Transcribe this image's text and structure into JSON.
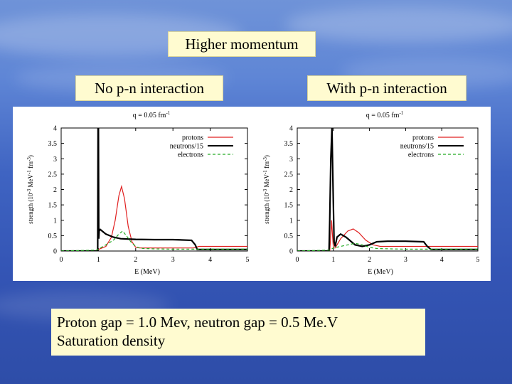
{
  "slide": {
    "title": "Higher  momentum",
    "left_label": "No  p-n  interaction",
    "right_label": "With  p-n  interaction",
    "note_line1": "Proton gap  =  1.0  Mev,  neutron gap = 0.5 Me.V",
    "note_line2": "Saturation density"
  },
  "chart_data": [
    {
      "type": "line",
      "title": "q = 0.05 fm-1",
      "title_base": "q = 0.05 fm",
      "title_sup": "-1",
      "xlabel": "E (MeV)",
      "ylabel": "strength (10-3 MeV-1 fm-3)",
      "ylabel_parts": [
        "strength (10",
        "-3",
        " MeV",
        "-1",
        " fm",
        "-3",
        ")"
      ],
      "xlim": [
        0,
        5
      ],
      "ylim": [
        0,
        4
      ],
      "xticks": [
        "0",
        "1",
        "2",
        "3",
        "4",
        "5"
      ],
      "yticks": [
        "0",
        "0.5",
        "1",
        "1.5",
        "2",
        "2.5",
        "3",
        "3.5",
        "4"
      ],
      "legend": [
        "protons",
        "neutrons/15",
        "electrons"
      ],
      "series": [
        {
          "name": "protons",
          "color": "#e02020",
          "dash": "",
          "x": [
            0,
            0.95,
            1.0,
            1.2,
            1.35,
            1.45,
            1.55,
            1.62,
            1.7,
            1.8,
            1.9,
            2.0,
            2.1,
            2.3,
            3.0,
            3.55,
            3.7,
            5.0
          ],
          "y": [
            0,
            0,
            0.05,
            0.15,
            0.45,
            1.0,
            1.8,
            2.1,
            1.7,
            0.8,
            0.3,
            0.12,
            0.1,
            0.1,
            0.1,
            0.1,
            0.15,
            0.15
          ]
        },
        {
          "name": "neutrons/15",
          "color": "#000000",
          "dash": "",
          "x": [
            0,
            0.98,
            0.99,
            1.0,
            1.01,
            1.02,
            1.05,
            1.1,
            1.2,
            1.4,
            1.6,
            2.0,
            2.5,
            3.0,
            3.5,
            3.6,
            3.65,
            3.8,
            5.0
          ],
          "y": [
            0,
            0,
            4.0,
            4.0,
            0.4,
            0.65,
            0.7,
            0.65,
            0.55,
            0.45,
            0.4,
            0.38,
            0.37,
            0.37,
            0.35,
            0.2,
            0.05,
            0.05,
            0.05
          ]
        },
        {
          "name": "electrons",
          "color": "#22aa22",
          "dash": "4,3",
          "x": [
            0,
            0.95,
            1.05,
            1.2,
            1.4,
            1.55,
            1.65,
            1.75,
            1.9,
            2.05,
            2.2,
            2.5,
            3.0,
            3.6,
            5.0
          ],
          "y": [
            0,
            0.03,
            0.1,
            0.2,
            0.35,
            0.55,
            0.65,
            0.5,
            0.25,
            0.12,
            0.08,
            0.07,
            0.06,
            0.06,
            0.06
          ]
        }
      ]
    },
    {
      "type": "line",
      "title": "q = 0.05 fm-1",
      "title_base": "q = 0.05 fm",
      "title_sup": "-1",
      "xlabel": "E (MeV)",
      "ylabel": "strength (10-3 MeV-1 fm-3)",
      "ylabel_parts": [
        "strength (10",
        "-3",
        " MeV",
        "-1",
        " fm",
        "-3",
        ")"
      ],
      "xlim": [
        0,
        5
      ],
      "ylim": [
        0,
        4
      ],
      "xticks": [
        "0",
        "1",
        "2",
        "3",
        "4",
        "5"
      ],
      "yticks": [
        "0",
        "0.5",
        "1",
        "1.5",
        "2",
        "2.5",
        "3",
        "3.5",
        "4"
      ],
      "legend": [
        "protons",
        "neutrons/15",
        "electrons"
      ],
      "series": [
        {
          "name": "protons",
          "color": "#e02020",
          "dash": "",
          "x": [
            0,
            0.9,
            0.93,
            0.95,
            0.97,
            1.0,
            1.05,
            1.1,
            1.2,
            1.4,
            1.55,
            1.7,
            1.9,
            2.1,
            2.3,
            2.6,
            3.0,
            3.6,
            5.0
          ],
          "y": [
            0,
            0,
            0.5,
            1.0,
            0.6,
            0.1,
            0.1,
            0.2,
            0.4,
            0.65,
            0.72,
            0.6,
            0.35,
            0.2,
            0.15,
            0.15,
            0.15,
            0.15,
            0.15
          ]
        },
        {
          "name": "neutrons/15",
          "color": "#000000",
          "dash": "",
          "x": [
            0,
            0.88,
            0.9,
            0.93,
            0.96,
            1.0,
            1.02,
            1.05,
            1.1,
            1.2,
            1.35,
            1.5,
            1.6,
            1.8,
            2.0,
            2.2,
            2.5,
            3.0,
            3.5,
            3.6,
            3.7,
            5.0
          ],
          "y": [
            0,
            0,
            1.0,
            3.0,
            4.0,
            1.5,
            0.3,
            0.15,
            0.45,
            0.55,
            0.45,
            0.3,
            0.2,
            0.15,
            0.2,
            0.3,
            0.32,
            0.32,
            0.3,
            0.15,
            0.05,
            0.05
          ]
        },
        {
          "name": "electrons",
          "color": "#22aa22",
          "dash": "4,3",
          "x": [
            0,
            0.9,
            1.0,
            1.2,
            1.4,
            1.6,
            1.8,
            2.0,
            2.2,
            2.6,
            3.0,
            5.0
          ],
          "y": [
            0,
            0.03,
            0.1,
            0.15,
            0.2,
            0.25,
            0.2,
            0.12,
            0.08,
            0.07,
            0.06,
            0.06
          ]
        }
      ]
    }
  ]
}
